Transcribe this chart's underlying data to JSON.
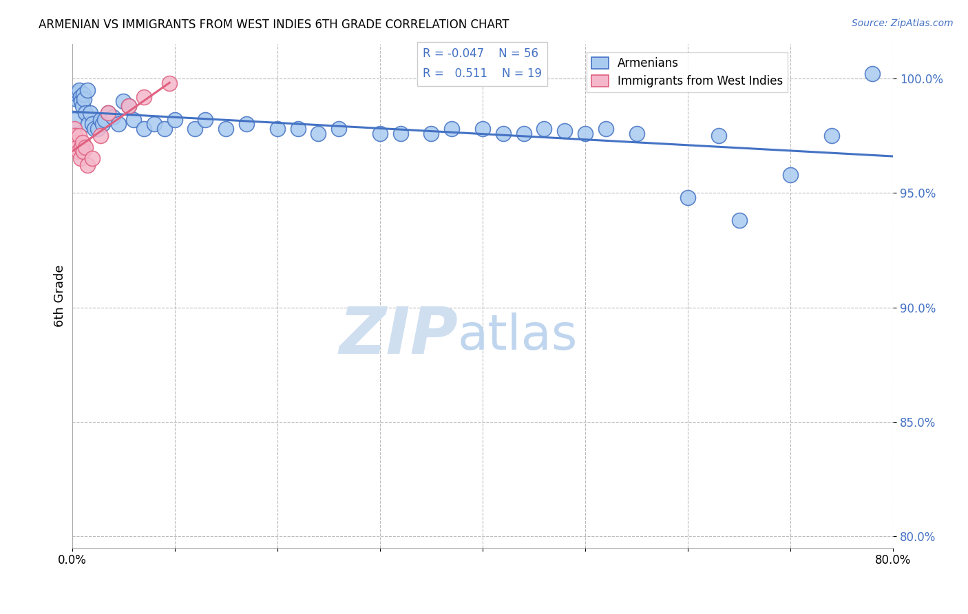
{
  "title": "ARMENIAN VS IMMIGRANTS FROM WEST INDIES 6TH GRADE CORRELATION CHART",
  "source": "Source: ZipAtlas.com",
  "ylabel": "6th Grade",
  "xlim": [
    0.0,
    80.0
  ],
  "ylim": [
    79.5,
    101.5
  ],
  "yticks": [
    80.0,
    85.0,
    90.0,
    95.0,
    100.0
  ],
  "xticks": [
    0,
    10,
    20,
    30,
    40,
    50,
    60,
    70,
    80
  ],
  "legend_armenians": "Armenians",
  "legend_wi": "Immigrants from West Indies",
  "R_armenians": -0.047,
  "N_armenians": 56,
  "R_wi": 0.511,
  "N_wi": 19,
  "color_armenians_fill": "#AACBF0",
  "color_armenians_edge": "#4472C4",
  "color_wi_fill": "#F5B8CB",
  "color_wi_edge": "#E06080",
  "color_line_armenians": "#4472C4",
  "color_line_wi": "#E06080",
  "watermark_zip": "ZIP",
  "watermark_atlas": "atlas",
  "watermark_color": "#D0DFF0",
  "background_color": "#FFFFFF",
  "ytick_color": "#4472C4",
  "source_color": "#4472C4",
  "arm_x": [
    0.2,
    0.4,
    0.5,
    0.6,
    0.7,
    0.8,
    0.9,
    1.0,
    1.1,
    1.2,
    1.3,
    1.5,
    1.6,
    1.8,
    2.0,
    2.2,
    2.5,
    2.8,
    3.0,
    3.2,
    3.5,
    4.0,
    4.5,
    5.0,
    5.5,
    6.0,
    7.0,
    8.0,
    9.0,
    10.0,
    12.0,
    13.0,
    15.0,
    17.0,
    20.0,
    22.0,
    24.0,
    26.0,
    30.0,
    32.0,
    35.0,
    37.0,
    40.0,
    42.0,
    44.0,
    46.0,
    48.0,
    50.0,
    52.0,
    55.0,
    60.0,
    63.0,
    65.0,
    70.0,
    74.0,
    78.0
  ],
  "arm_y": [
    98.2,
    99.1,
    99.3,
    99.4,
    99.5,
    99.2,
    99.0,
    98.8,
    99.3,
    99.1,
    98.5,
    99.5,
    98.0,
    98.5,
    98.0,
    97.8,
    97.8,
    98.2,
    98.0,
    98.2,
    98.5,
    98.3,
    98.0,
    99.0,
    98.8,
    98.2,
    97.8,
    98.0,
    97.8,
    98.2,
    97.8,
    98.2,
    97.8,
    98.0,
    97.8,
    97.8,
    97.6,
    97.8,
    97.6,
    97.6,
    97.6,
    97.8,
    97.8,
    97.6,
    97.6,
    97.8,
    97.7,
    97.6,
    97.8,
    97.6,
    94.8,
    97.5,
    93.8,
    95.8,
    97.5,
    100.2
  ],
  "wi_x": [
    0.1,
    0.2,
    0.3,
    0.4,
    0.5,
    0.6,
    0.7,
    0.8,
    0.9,
    1.0,
    1.1,
    1.3,
    1.5,
    2.0,
    2.8,
    3.5,
    5.5,
    7.0,
    9.5
  ],
  "wi_y": [
    97.2,
    97.8,
    97.5,
    97.2,
    97.0,
    96.8,
    97.5,
    96.5,
    97.0,
    97.2,
    96.8,
    97.0,
    96.2,
    96.5,
    97.5,
    98.5,
    98.8,
    99.2,
    99.8
  ]
}
